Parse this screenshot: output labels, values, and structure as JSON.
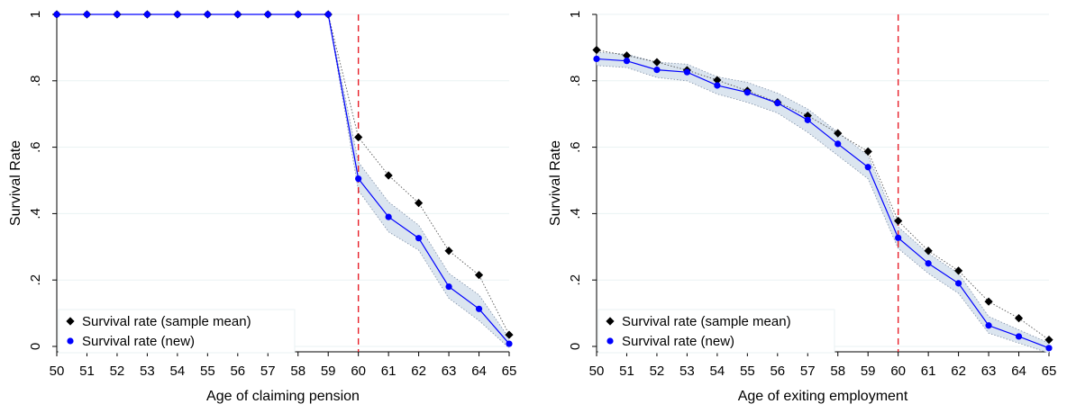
{
  "chart_data": [
    {
      "type": "line",
      "xlabel": "Age of claiming pension",
      "ylabel": "Survival Rate",
      "x": [
        50,
        51,
        52,
        53,
        54,
        55,
        56,
        57,
        58,
        59,
        60,
        61,
        62,
        63,
        64,
        65
      ],
      "xlim": [
        50,
        65
      ],
      "ylim": [
        0,
        1
      ],
      "yticks": [
        0,
        0.2,
        0.4,
        0.6,
        0.8,
        1
      ],
      "yticklabels": [
        "0",
        ".2",
        ".4",
        ".6",
        ".8",
        "1"
      ],
      "vline": 60,
      "grid": true,
      "legend_position": "bottom-left",
      "series": [
        {
          "name": "Survival rate (sample mean)",
          "marker": "diamond",
          "color": "#000000",
          "values": [
            1,
            1,
            1,
            1,
            1,
            1,
            1,
            1,
            1,
            1,
            0.63,
            0.515,
            0.432,
            0.288,
            0.215,
            0.035
          ]
        },
        {
          "name": "Survival rate (new)",
          "marker": "circle",
          "color": "#0000ff",
          "values": [
            1,
            1,
            1,
            1,
            1,
            1,
            1,
            1,
            1,
            1,
            0.505,
            0.39,
            0.326,
            0.18,
            0.113,
            0.008
          ],
          "ci_lower": [
            1,
            1,
            1,
            1,
            1,
            1,
            1,
            1,
            1,
            1,
            0.47,
            0.345,
            0.29,
            0.145,
            0.078,
            -0.005
          ],
          "ci_upper": [
            1,
            1,
            1,
            1,
            1,
            1,
            1,
            1,
            1,
            1,
            0.555,
            0.435,
            0.365,
            0.22,
            0.155,
            0.025
          ]
        }
      ]
    },
    {
      "type": "line",
      "xlabel": "Age of exiting employment",
      "ylabel": "Survival Rate",
      "x": [
        50,
        51,
        52,
        53,
        54,
        55,
        56,
        57,
        58,
        59,
        60,
        61,
        62,
        63,
        64,
        65
      ],
      "xlim": [
        50,
        65
      ],
      "ylim": [
        0,
        1
      ],
      "yticks": [
        0,
        0.2,
        0.4,
        0.6,
        0.8,
        1
      ],
      "yticklabels": [
        "0",
        ".2",
        ".4",
        ".6",
        ".8",
        "1"
      ],
      "vline": 60,
      "grid": true,
      "legend_position": "bottom-left",
      "series": [
        {
          "name": "Survival rate (sample mean)",
          "marker": "diamond",
          "color": "#000000",
          "values": [
            0.893,
            0.876,
            0.856,
            0.832,
            0.802,
            0.77,
            0.735,
            0.695,
            0.642,
            0.587,
            0.378,
            0.288,
            0.228,
            0.135,
            0.085,
            0.02
          ]
        },
        {
          "name": "Survival rate (new)",
          "marker": "circle",
          "color": "#0000ff",
          "values": [
            0.866,
            0.86,
            0.833,
            0.826,
            0.786,
            0.765,
            0.733,
            0.682,
            0.61,
            0.54,
            0.327,
            0.25,
            0.19,
            0.063,
            0.03,
            -0.005
          ],
          "ci_lower": [
            0.846,
            0.84,
            0.81,
            0.8,
            0.76,
            0.735,
            0.703,
            0.645,
            0.575,
            0.505,
            0.295,
            0.22,
            0.16,
            0.04,
            0.01,
            -0.02
          ],
          "ci_upper": [
            0.886,
            0.88,
            0.856,
            0.85,
            0.812,
            0.795,
            0.763,
            0.715,
            0.645,
            0.575,
            0.36,
            0.28,
            0.22,
            0.09,
            0.05,
            0.01
          ]
        }
      ]
    }
  ]
}
